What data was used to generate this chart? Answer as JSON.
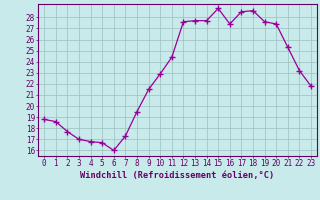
{
  "x": [
    0,
    1,
    2,
    3,
    4,
    5,
    6,
    7,
    8,
    9,
    10,
    11,
    12,
    13,
    14,
    15,
    16,
    17,
    18,
    19,
    20,
    21,
    22,
    23
  ],
  "y": [
    18.8,
    18.6,
    17.7,
    17.0,
    16.8,
    16.7,
    16.0,
    17.3,
    19.5,
    21.5,
    22.9,
    24.4,
    27.6,
    27.7,
    27.7,
    28.8,
    27.4,
    28.5,
    28.6,
    27.6,
    27.4,
    25.3,
    23.2,
    21.8
  ],
  "line_color": "#990099",
  "marker": "+",
  "bg_color": "#c8eaea",
  "grid_color": "#9bbebe",
  "ylabel_ticks": [
    16,
    17,
    18,
    19,
    20,
    21,
    22,
    23,
    24,
    25,
    26,
    27,
    28
  ],
  "xlabel": "Windchill (Refroidissement éolien,°C)",
  "ylim": [
    15.5,
    29.2
  ],
  "xlim": [
    -0.5,
    23.5
  ],
  "font_color": "#660066",
  "tick_fontsize": 5.5,
  "xlabel_fontsize": 6.2
}
